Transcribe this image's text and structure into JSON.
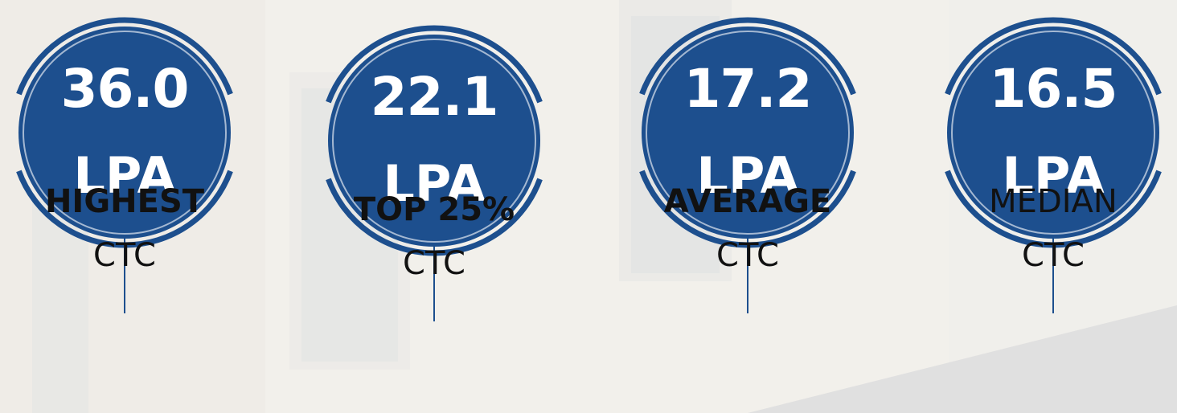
{
  "stats": [
    {
      "value": "36.0",
      "unit": "LPA",
      "label": [
        "HIGHEST",
        "CTC"
      ]
    },
    {
      "value": "22.1",
      "unit": "LPA",
      "label": [
        "TOP 25%",
        "CTC"
      ]
    },
    {
      "value": "17.2",
      "unit": "LPA",
      "label": [
        "AVERAGE",
        "CTC"
      ]
    },
    {
      "value": "16.5",
      "unit": "LPA",
      "label": [
        "MEDIAN",
        "CTC"
      ]
    }
  ]
}
